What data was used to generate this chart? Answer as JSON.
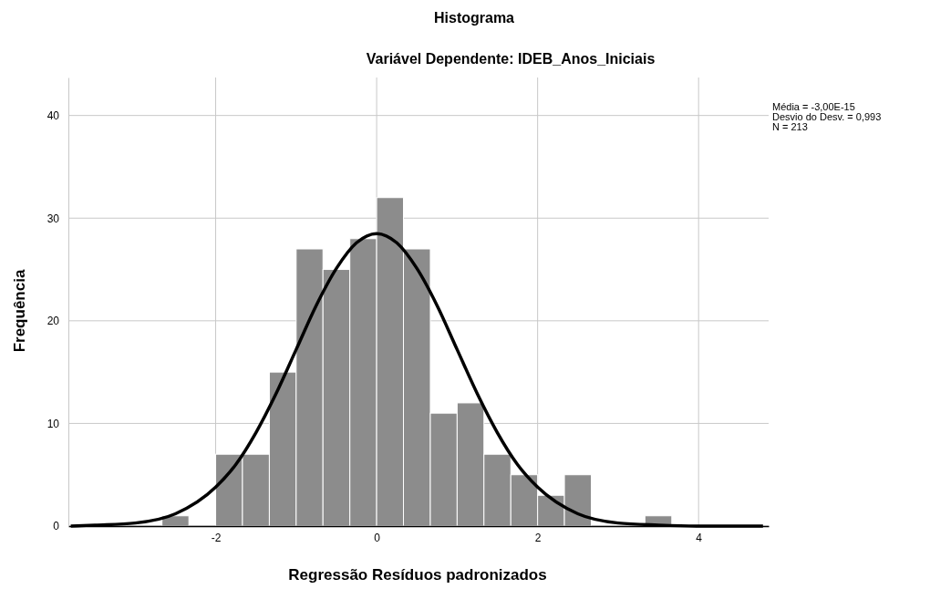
{
  "chart_data": {
    "type": "histogram",
    "title": "Histograma",
    "subtitle": "Variável Dependente: IDEB_Anos_Iniciais",
    "xlabel": "Regressão Resíduos padronizados",
    "ylabel": "Frequência",
    "bins": [
      -2.667,
      -2.333,
      -2,
      -1.667,
      -1.333,
      -1,
      -0.667,
      -0.333,
      0,
      0.333,
      0.667,
      1,
      1.333,
      1.667,
      2,
      2.333,
      2.667,
      3,
      3.333,
      3.667
    ],
    "values": [
      1,
      0,
      7,
      7,
      15,
      27,
      25,
      28,
      32,
      27,
      11,
      12,
      7,
      5,
      3,
      5,
      0,
      0,
      1
    ],
    "color": "#8c8c8c",
    "series": [
      {
        "type": "line",
        "color": "#000000",
        "x": [
          -3.8,
          -3.5,
          -3,
          -2.5,
          -2,
          -1.75,
          -1.5,
          -1.25,
          -1,
          -0.75,
          -0.5,
          -0.25,
          0,
          0.25,
          0.5,
          0.75,
          1,
          1.25,
          1.5,
          1.75,
          2,
          2.5,
          3,
          3.5,
          4,
          4.8
        ],
        "values": [
          0,
          0.1,
          0.3,
          1.2,
          3.8,
          6,
          9.1,
          12.9,
          17.2,
          21.5,
          25.1,
          27.6,
          28.5,
          27.6,
          25.1,
          21.5,
          17.2,
          12.9,
          9.1,
          6,
          3.8,
          1.2,
          0.3,
          0.1,
          0,
          0
        ]
      }
    ],
    "xlim": [
      -3.83,
      4.87
    ],
    "ylim": [
      0,
      43.7
    ],
    "xticks": [
      -2,
      0,
      2,
      4
    ],
    "yticks": [
      0,
      10,
      20,
      30,
      40
    ],
    "grid": true,
    "annotations": [
      "Média = -3,00E-15",
      "Desvio do Desv. = 0,993",
      "N = 213"
    ]
  }
}
